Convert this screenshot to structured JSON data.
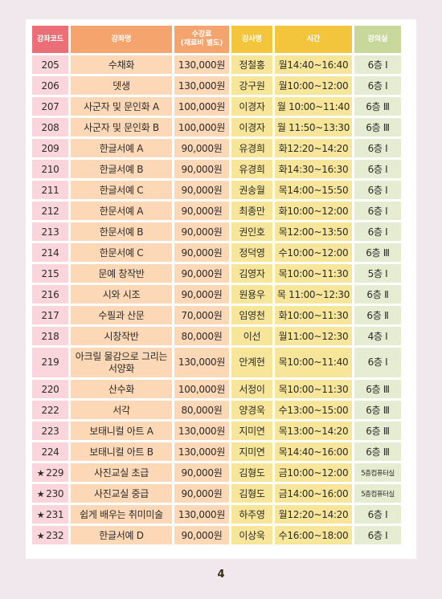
{
  "headers": {
    "code": "강좌코드",
    "name": "강좌명",
    "fee_line1": "수강료",
    "fee_line2": "(재료비 별도)",
    "instructor": "강사명",
    "time": "시간",
    "room": "강의실"
  },
  "rows": [
    {
      "star": false,
      "code": "205",
      "name": "수채화",
      "fee": "130,000원",
      "instructor": "정철홍",
      "time": "월14:40~16:40",
      "room": "6층 Ⅰ"
    },
    {
      "star": false,
      "code": "206",
      "name": "뎃생",
      "fee": "130,000원",
      "instructor": "강구원",
      "time": "월10:00~12:00",
      "room": "6층 Ⅰ"
    },
    {
      "star": false,
      "code": "207",
      "name": "사군자 및 문인화 A",
      "fee": "100,000원",
      "instructor": "이경자",
      "time": "월 10:00~11:40",
      "room": "6층 Ⅲ"
    },
    {
      "star": false,
      "code": "208",
      "name": "사군자 및 문인화 B",
      "fee": "100,000원",
      "instructor": "이경자",
      "time": "월 11:50~13:30",
      "room": "6층 Ⅲ"
    },
    {
      "star": false,
      "code": "209",
      "name": "한글서예 A",
      "fee": "90,000원",
      "instructor": "유경희",
      "time": "화12:20~14:20",
      "room": "6층 Ⅰ"
    },
    {
      "star": false,
      "code": "210",
      "name": "한글서예 B",
      "fee": "90,000원",
      "instructor": "유경희",
      "time": "화14:30~16:30",
      "room": "6층 Ⅰ"
    },
    {
      "star": false,
      "code": "211",
      "name": "한글서예 C",
      "fee": "90,000원",
      "instructor": "권송월",
      "time": "목14:00~15:50",
      "room": "6층 Ⅰ"
    },
    {
      "star": false,
      "code": "212",
      "name": "한문서예 A",
      "fee": "90,000원",
      "instructor": "최종만",
      "time": "화10:00~12:00",
      "room": "6층 Ⅰ"
    },
    {
      "star": false,
      "code": "213",
      "name": "한문서예 B",
      "fee": "90,000원",
      "instructor": "권인호",
      "time": "목12:00~13:50",
      "room": "6층 Ⅰ"
    },
    {
      "star": false,
      "code": "214",
      "name": "한문서예 C",
      "fee": "90,000원",
      "instructor": "정덕영",
      "time": "수10:00~12:00",
      "room": "6층 Ⅲ"
    },
    {
      "star": false,
      "code": "215",
      "name": "문예 창작반",
      "fee": "90,000원",
      "instructor": "김영자",
      "time": "목10:00~11:30",
      "room": "5층 Ⅰ"
    },
    {
      "star": false,
      "code": "216",
      "name": "시와 시조",
      "fee": "90,000원",
      "instructor": "원용우",
      "time": "목 11:00~12:30",
      "room": "6층 Ⅱ"
    },
    {
      "star": false,
      "code": "217",
      "name": "수필과 산문",
      "fee": "70,000원",
      "instructor": "임영천",
      "time": "화10:00~11:30",
      "room": "6층 Ⅱ"
    },
    {
      "star": false,
      "code": "218",
      "name": "시창작반",
      "fee": "80,000원",
      "instructor": "이선",
      "time": "월11:00~12:30",
      "room": "4층 Ⅰ"
    },
    {
      "star": false,
      "code": "219",
      "name": "아크릴 물감으로 그리는 서양화",
      "fee": "130,000원",
      "instructor": "안계현",
      "time": "목10:00~11:40",
      "room": "6층 Ⅰ",
      "tall": true
    },
    {
      "star": false,
      "code": "220",
      "name": "산수화",
      "fee": "100,000원",
      "instructor": "서정이",
      "time": "목10:00~11:30",
      "room": "6층 Ⅲ"
    },
    {
      "star": false,
      "code": "222",
      "name": "서각",
      "fee": "80,000원",
      "instructor": "양경욱",
      "time": "수13:00~15:00",
      "room": "6층 Ⅲ"
    },
    {
      "star": false,
      "code": "223",
      "name": "보태니컬 아트 A",
      "fee": "130,000원",
      "instructor": "지미연",
      "time": "목13:00~14:20",
      "room": "6층 Ⅲ"
    },
    {
      "star": false,
      "code": "224",
      "name": "보태니컬 아트 B",
      "fee": "130,000원",
      "instructor": "지미연",
      "time": "목14:40~16:00",
      "room": "6층 Ⅲ"
    },
    {
      "star": true,
      "code": "229",
      "name": "사진교실 초급",
      "fee": "90,000원",
      "instructor": "김형도",
      "time": "금10:00~12:00",
      "room": "5층컴퓨터실",
      "small_room": true
    },
    {
      "star": true,
      "code": "230",
      "name": "사진교실 중급",
      "fee": "90,000원",
      "instructor": "김형도",
      "time": "금14:00~16:00",
      "room": "5층컴퓨터실",
      "small_room": true
    },
    {
      "star": true,
      "code": "231",
      "name": "쉽게 배우는 취미미술",
      "fee": "130,000원",
      "instructor": "하주영",
      "time": "월12:20~14:20",
      "room": "6층 Ⅰ"
    },
    {
      "star": true,
      "code": "232",
      "name": "한글서예 D",
      "fee": "90,000원",
      "instructor": "이상욱",
      "time": "수16:00~18:00",
      "room": "6층 Ⅰ"
    }
  ],
  "icons": {
    "star": "star-icon"
  },
  "colors": {
    "code_header": "#ea6f76",
    "name_header": "#f6a46e",
    "instructor_header": "#f2c53c",
    "room_header": "#c8d89a"
  },
  "page_number": "4"
}
